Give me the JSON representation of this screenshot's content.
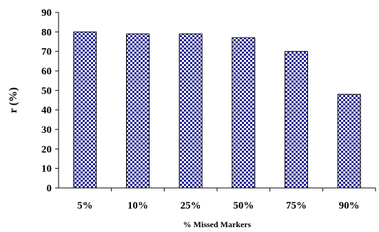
{
  "chart_data": {
    "type": "bar",
    "categories": [
      "5%",
      "10%",
      "25%",
      "50%",
      "75%",
      "90%"
    ],
    "values": [
      80,
      79,
      79,
      77,
      70,
      48
    ],
    "xlabel": "% Missed Markers",
    "ylabel": "r (%)",
    "ylim": [
      0,
      90
    ],
    "yticks": [
      0,
      10,
      20,
      30,
      40,
      50,
      60,
      70,
      80,
      90
    ],
    "grid": false,
    "bar_pattern": "blue-checkered dots",
    "colors": {
      "pattern_fg": "#1f1f8f",
      "pattern_bg": "#ffffff",
      "axis": "#000000"
    }
  }
}
